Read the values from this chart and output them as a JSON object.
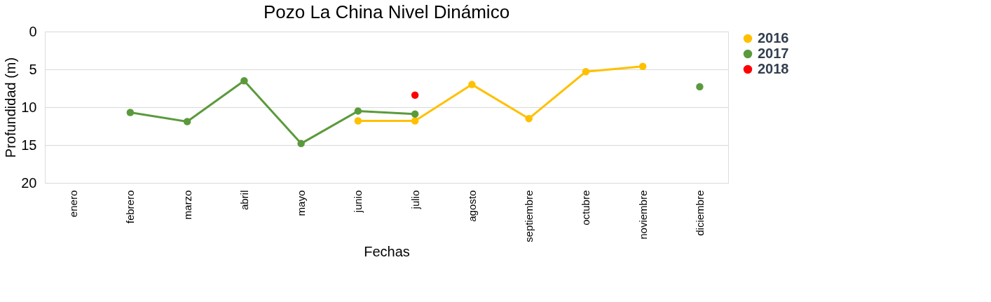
{
  "chart_data": {
    "type": "line",
    "title": "Pozo La China Nivel Dinámico",
    "xlabel": "Fechas",
    "ylabel": "Profundidad (m)",
    "categories": [
      "enero",
      "febrero",
      "marzo",
      "abril",
      "mayo",
      "junio",
      "julio",
      "agosto",
      "septiembre",
      "octubre",
      "noviembre",
      "diciembre"
    ],
    "series": [
      {
        "name": "2016",
        "color": "#ffc000",
        "values": [
          null,
          null,
          null,
          null,
          null,
          11.8,
          11.8,
          7.0,
          11.5,
          5.3,
          4.6,
          null
        ]
      },
      {
        "name": "2017",
        "color": "#5b9a3c",
        "values": [
          null,
          10.7,
          11.9,
          6.5,
          14.8,
          10.5,
          10.9,
          null,
          null,
          null,
          null,
          7.3
        ]
      },
      {
        "name": "2018",
        "color": "#ff0000",
        "values": [
          null,
          null,
          null,
          null,
          null,
          null,
          8.4,
          null,
          null,
          null,
          null,
          null
        ]
      }
    ],
    "ylim": [
      20,
      0
    ],
    "yticks": [
      0,
      5,
      10,
      15,
      20
    ],
    "grid": "y",
    "legend": "right",
    "marker": "circle",
    "line_style": "solid"
  }
}
